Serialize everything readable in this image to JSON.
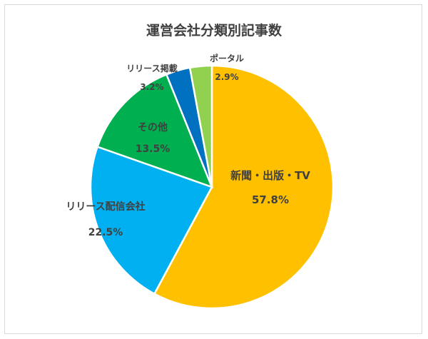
{
  "chart_data": {
    "type": "pie",
    "title": "運営会社分類別記事数",
    "slices": [
      {
        "label": "新聞・出版・TV",
        "value": 57.8,
        "value_label": "57.8%",
        "color": "#FFC000"
      },
      {
        "label": "リリース配信会社",
        "value": 22.5,
        "value_label": "22.5%",
        "color": "#00B0F0"
      },
      {
        "label": "その他",
        "value": 13.5,
        "value_label": "13.5%",
        "color": "#00B050"
      },
      {
        "label": "リリース掲載",
        "value": 3.2,
        "value_label": "3.2%",
        "color": "#0070C0"
      },
      {
        "label": "ポータル",
        "value": 2.9,
        "value_label": "2.9%",
        "color": "#92D050"
      }
    ],
    "start": "12 o'clock",
    "direction": "clockwise",
    "legend": "none",
    "data_labels": "category name and percent"
  }
}
